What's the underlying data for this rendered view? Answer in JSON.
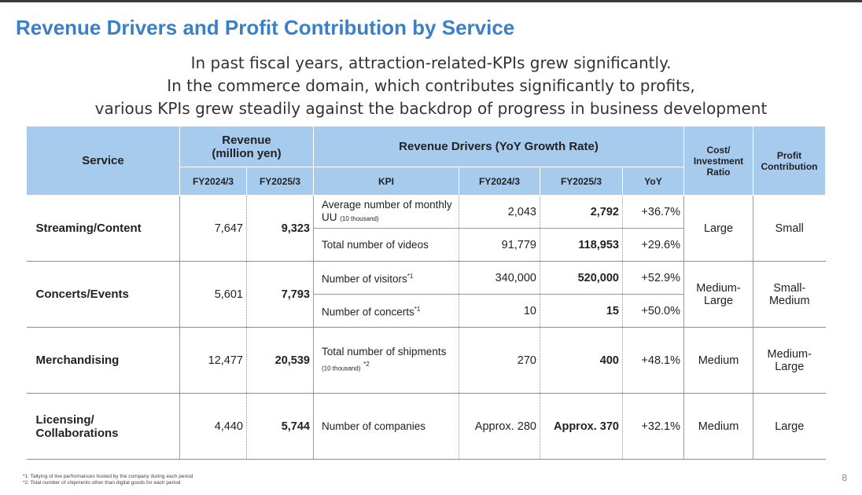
{
  "title": "Revenue Drivers and Profit Contribution by Service",
  "subtitle": [
    "In past fiscal years, attraction-related-KPIs grew significantly.",
    "In the commerce domain, which contributes significantly to profits,",
    "various KPIs grew steadily against the backdrop of progress in business development"
  ],
  "table": {
    "headers": {
      "service": "Service",
      "revenue_line1": "Revenue",
      "revenue_line2": "(million yen)",
      "drivers": "Revenue Drivers (YoY Growth Rate)",
      "cost_line1": "Cost/",
      "cost_line2": "Investment",
      "cost_line3": "Ratio",
      "profit_line1": "Profit",
      "profit_line2": "Contribution",
      "fy2024": "FY2024/3",
      "fy2025": "FY2025/3",
      "kpi": "KPI",
      "kpi_fy2024": "FY2024/3",
      "kpi_fy2025": "FY2025/3",
      "yoy": "YoY"
    },
    "streaming": {
      "service": "Streaming/Content",
      "rev2024": "7,647",
      "rev2025": "9,323",
      "kpi1_label": "Average number of monthly UU",
      "kpi1_note": "(10 thousand)",
      "kpi1_2024": "2,043",
      "kpi1_2025": "2,792",
      "kpi1_yoy": "+36.7%",
      "kpi2_label": "Total number of videos",
      "kpi2_2024": "91,779",
      "kpi2_2025": "118,953",
      "kpi2_yoy": "+29.6%",
      "cost": "Large",
      "profit": "Small"
    },
    "concerts": {
      "service": "Concerts/Events",
      "rev2024": "5,601",
      "rev2025": "7,793",
      "kpi1_label": "Number of visitors",
      "kpi1_mark": "*1",
      "kpi1_2024": "340,000",
      "kpi1_2025": "520,000",
      "kpi1_yoy": "+52.9%",
      "kpi2_label": "Number of concerts",
      "kpi2_mark": "*1",
      "kpi2_2024": "10",
      "kpi2_2025": "15",
      "kpi2_yoy": "+50.0%",
      "cost_line1": "Medium-",
      "cost_line2": "Large",
      "profit_line1": "Small-",
      "profit_line2": "Medium"
    },
    "merch": {
      "service": "Merchandising",
      "rev2024": "12,477",
      "rev2025": "20,539",
      "kpi_label": "Total number of shipments",
      "kpi_note": "(10 thousand)",
      "kpi_mark": "*2",
      "kpi_2024": "270",
      "kpi_2025": "400",
      "kpi_yoy": "+48.1%",
      "cost": "Medium",
      "profit_line1": "Medium-",
      "profit_line2": "Large"
    },
    "licensing": {
      "service_line1": "Licensing/",
      "service_line2": "Collaborations",
      "rev2024": "4,440",
      "rev2025": "5,744",
      "kpi_label": "Number of companies",
      "kpi_2024": "Approx. 280",
      "kpi_2025": "Approx. 370",
      "kpi_yoy": "+32.1%",
      "cost": "Medium",
      "profit": "Large"
    }
  },
  "footnotes": [
    "*1: Tallying of live performances hosted by the company during each period",
    "*2: Total number of shipments other than digital goods for each period"
  ],
  "page_number": "8"
}
